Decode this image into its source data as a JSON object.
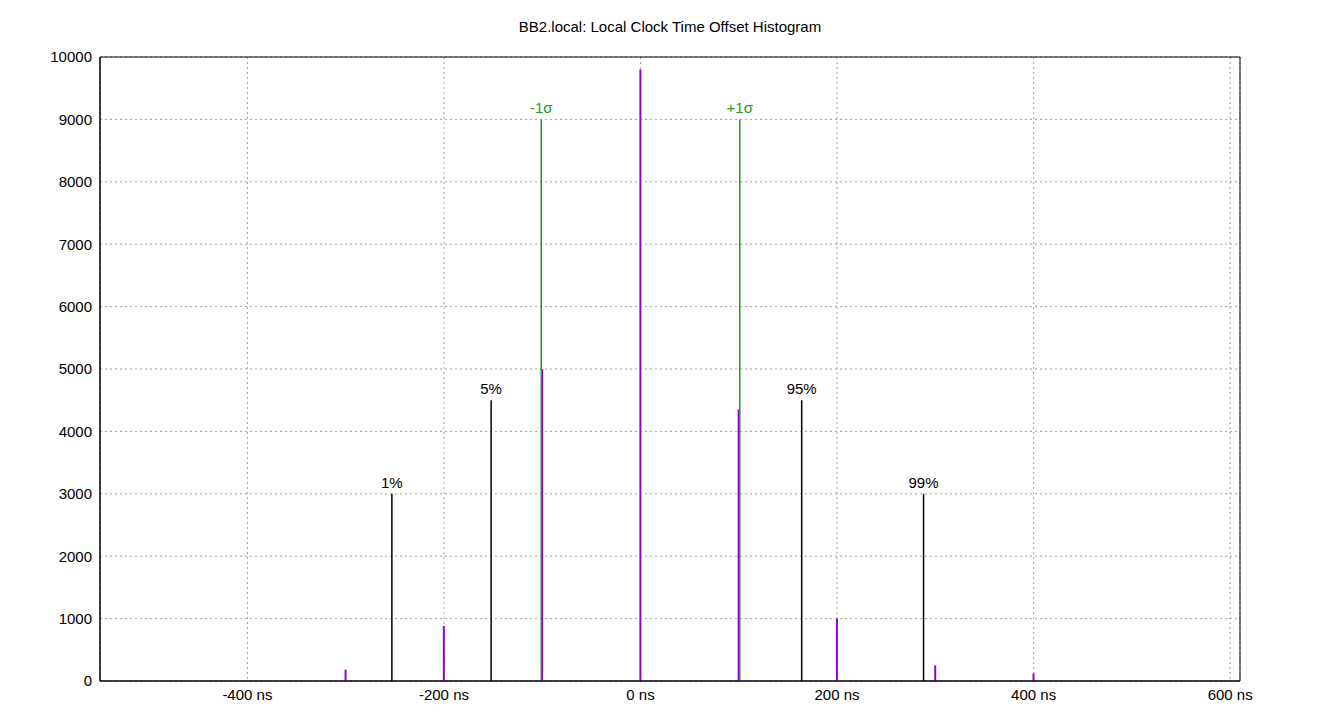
{
  "chart_data": {
    "type": "impulse",
    "title": "BB2.local: Local Clock Time Offset Histogram",
    "x": [
      -300,
      -200,
      -100,
      0,
      100,
      200,
      300,
      400,
      500
    ],
    "values": [
      180,
      880,
      5000,
      9800,
      4350,
      1000,
      250,
      120,
      5
    ],
    "color": "#9400d3",
    "xlim": [
      -550,
      610
    ],
    "xticks": [
      {
        "value": -400,
        "label": "-400 ns"
      },
      {
        "value": -200,
        "label": "-200 ns"
      },
      {
        "value": 0,
        "label": "0 ns"
      },
      {
        "value": 200,
        "label": "200 ns"
      },
      {
        "value": 400,
        "label": "400 ns"
      },
      {
        "value": 600,
        "label": "600 ns"
      }
    ],
    "ylim": [
      0,
      10000
    ],
    "yticks": [
      0,
      1000,
      2000,
      3000,
      4000,
      5000,
      6000,
      7000,
      8000,
      9000,
      10000
    ],
    "grid": true,
    "annotations": [
      {
        "label": "-1σ",
        "x": -101,
        "y": 9000,
        "color": "#229922"
      },
      {
        "label": "+1σ",
        "x": 101,
        "y": 9000,
        "color": "#229922"
      },
      {
        "label": "1%",
        "x": -253,
        "y": 3000,
        "color": "#000000"
      },
      {
        "label": "5%",
        "x": -152,
        "y": 4500,
        "color": "#000000"
      },
      {
        "label": "95%",
        "x": 164,
        "y": 4500,
        "color": "#000000"
      },
      {
        "label": "99%",
        "x": 288,
        "y": 3000,
        "color": "#000000"
      }
    ]
  }
}
